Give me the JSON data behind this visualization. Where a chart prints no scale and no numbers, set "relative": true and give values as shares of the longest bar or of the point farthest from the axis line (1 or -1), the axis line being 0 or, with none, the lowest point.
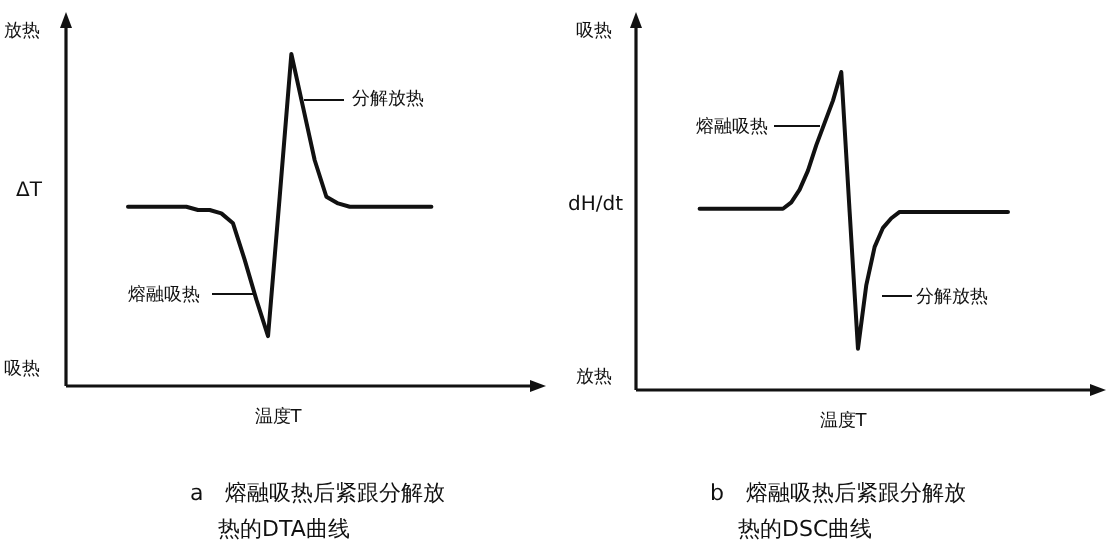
{
  "chart_data": [
    {
      "type": "line",
      "relative": true,
      "title": "a　熔融吸热后紧跟分解放热的DTA曲线",
      "ylabel": "ΔT",
      "xlabel": "温度T",
      "marker": "none",
      "line_style": "solid",
      "annotations": [
        "放热",
        "吸热",
        "分解放热",
        "熔融吸热"
      ],
      "categories": [
        null,
        null,
        null,
        null,
        null,
        null,
        null,
        null,
        null,
        null,
        null,
        null,
        null,
        null,
        null,
        null,
        null,
        null,
        null,
        null,
        null,
        null,
        null,
        null,
        null,
        null,
        null
      ],
      "series": [
        {
          "color": "#111111",
          "values": [
            0.54,
            0.54,
            0.54,
            0.54,
            0.54,
            0.54,
            0.53,
            0.53,
            0.52,
            0.49,
            0.38,
            0.26,
            0.15,
            0.57,
            1,
            0.84,
            0.68,
            0.57,
            0.55,
            0.54,
            0.54,
            0.54,
            0.54,
            0.54,
            0.54,
            0.54,
            0.54
          ]
        }
      ]
    },
    {
      "type": "line",
      "relative": true,
      "title": "b　熔融吸热后紧跟分解放热的DSC曲线",
      "ylabel": "dH/dt",
      "xlabel": "温度T",
      "marker": "none",
      "line_style": "solid",
      "annotations": [
        "吸热",
        "放热",
        "熔融吸热",
        "分解放热"
      ],
      "categories": [
        null,
        null,
        null,
        null,
        null,
        null,
        null,
        null,
        null,
        null,
        null,
        null,
        null,
        null,
        null,
        null,
        null,
        null,
        null,
        null,
        null,
        null,
        null,
        null,
        null,
        null,
        null,
        null,
        null,
        null,
        null,
        null,
        null,
        null,
        null,
        null,
        null,
        null
      ],
      "series": [
        {
          "color": "#111111",
          "values": [
            0.57,
            0.57,
            0.57,
            0.57,
            0.57,
            0.57,
            0.57,
            0.57,
            0.57,
            0.57,
            0.57,
            0.59,
            0.63,
            0.69,
            0.77,
            0.84,
            0.91,
            1,
            0.56,
            0.13,
            0.33,
            0.45,
            0.51,
            0.54,
            0.56,
            0.56,
            0.56,
            0.56,
            0.56,
            0.56,
            0.56,
            0.56,
            0.56,
            0.56,
            0.56,
            0.56,
            0.56,
            0.56
          ]
        }
      ]
    }
  ]
}
